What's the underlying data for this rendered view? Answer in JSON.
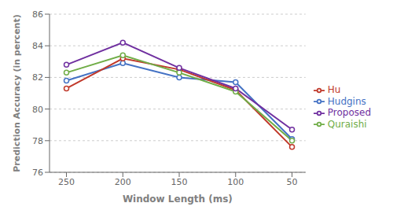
{
  "chart_data": {
    "type": "line",
    "xlabel": "Window Length (ms)",
    "ylabel": "Prediction Accuracy (in percent)",
    "x": [
      250,
      200,
      150,
      100,
      50
    ],
    "series": [
      {
        "name": "Hudgins",
        "color": "#4472c4",
        "values": [
          81.8,
          82.9,
          82.0,
          81.7,
          78.1
        ]
      },
      {
        "name": "Hu",
        "color": "#c0392b",
        "values": [
          81.3,
          83.2,
          82.5,
          81.2,
          77.6
        ]
      },
      {
        "name": "Quraishi",
        "color": "#70ad47",
        "values": [
          82.3,
          83.4,
          82.3,
          81.1,
          78.0
        ]
      },
      {
        "name": "Proposed",
        "color": "#7030a0",
        "values": [
          82.8,
          84.2,
          82.6,
          81.3,
          78.7
        ]
      }
    ],
    "xlim": [
      265,
      38
    ],
    "xticks": [
      250,
      200,
      150,
      100,
      50
    ],
    "ylim": [
      76,
      86
    ],
    "yticks": [
      76,
      78,
      80,
      82,
      84,
      86
    ],
    "grid": "y",
    "legend": "right",
    "marker": "circle"
  }
}
